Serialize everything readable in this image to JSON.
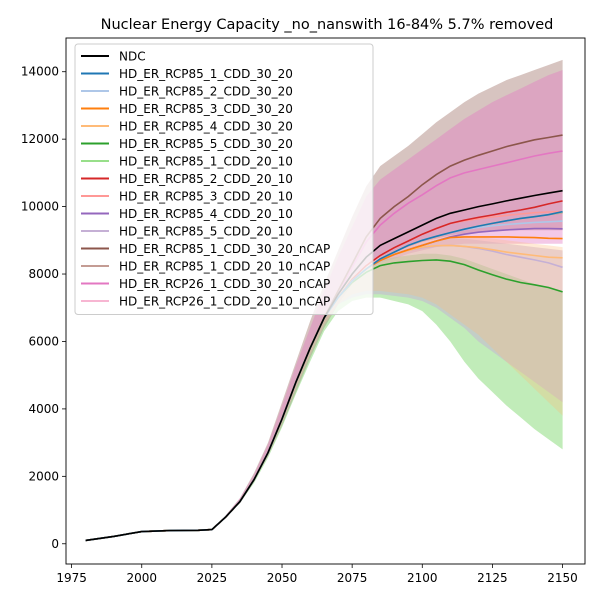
{
  "chart_data": {
    "type": "line",
    "title": "Nuclear Energy Capacity _no_nanswith 16-84% 5.7% removed",
    "xlabel": "",
    "ylabel": "",
    "xlim": [
      1973,
      2158
    ],
    "ylim": [
      -600,
      15000
    ],
    "x_ticks": [
      1975,
      2000,
      2025,
      2050,
      2075,
      2100,
      2125,
      2150
    ],
    "y_ticks": [
      0,
      2000,
      4000,
      6000,
      8000,
      10000,
      12000,
      14000
    ],
    "grid": false,
    "legend_position": "upper-left",
    "x": [
      1980,
      1990,
      2000,
      2010,
      2020,
      2025,
      2030,
      2035,
      2040,
      2045,
      2050,
      2055,
      2060,
      2065,
      2070,
      2075,
      2080,
      2085,
      2090,
      2095,
      2100,
      2105,
      2110,
      2115,
      2120,
      2125,
      2130,
      2135,
      2140,
      2145,
      2150
    ],
    "series": [
      {
        "name": "NDC",
        "color": "#000000",
        "values": [
          100,
          220,
          360,
          390,
          400,
          420,
          800,
          1250,
          1900,
          2700,
          3700,
          4800,
          5800,
          6700,
          7400,
          8000,
          8500,
          8850,
          9050,
          9250,
          9450,
          9650,
          9800,
          9900,
          10000,
          10080,
          10170,
          10250,
          10330,
          10400,
          10470
        ]
      },
      {
        "name": "HD_ER_RCP85_1_CDD_30_20",
        "color": "#1f77b4",
        "values": [
          100,
          220,
          360,
          390,
          400,
          420,
          800,
          1250,
          1900,
          2700,
          3700,
          4800,
          5800,
          6700,
          7300,
          7800,
          8150,
          8450,
          8650,
          8850,
          9000,
          9120,
          9230,
          9330,
          9420,
          9500,
          9580,
          9650,
          9700,
          9760,
          9850
        ]
      },
      {
        "name": "HD_ER_RCP85_2_CDD_30_20",
        "color": "#aec7e8",
        "values": [
          100,
          220,
          360,
          390,
          400,
          420,
          800,
          1250,
          1900,
          2700,
          3700,
          4800,
          5800,
          6700,
          7300,
          7800,
          8150,
          8450,
          8650,
          8850,
          9000,
          9120,
          9230,
          9320,
          9380,
          9430,
          9470,
          9500,
          9530,
          9550,
          9570
        ]
      },
      {
        "name": "HD_ER_RCP85_3_CDD_30_20",
        "color": "#ff7f0e",
        "values": [
          100,
          220,
          360,
          390,
          400,
          420,
          800,
          1250,
          1900,
          2700,
          3700,
          4800,
          5800,
          6700,
          7300,
          7800,
          8150,
          8400,
          8580,
          8720,
          8850,
          8980,
          9080,
          9100,
          9100,
          9100,
          9100,
          9090,
          9080,
          9060,
          9050
        ]
      },
      {
        "name": "HD_ER_RCP85_4_CDD_30_20",
        "color": "#ffbb78",
        "values": [
          100,
          220,
          360,
          390,
          400,
          420,
          800,
          1250,
          1900,
          2700,
          3700,
          4800,
          5800,
          6700,
          7300,
          7800,
          8150,
          8400,
          8580,
          8700,
          8800,
          8840,
          8850,
          8820,
          8780,
          8720,
          8650,
          8600,
          8550,
          8500,
          8480
        ]
      },
      {
        "name": "HD_ER_RCP85_5_CDD_30_20",
        "color": "#2ca02c",
        "values": [
          100,
          220,
          360,
          390,
          400,
          420,
          800,
          1250,
          1900,
          2700,
          3700,
          4800,
          5800,
          6700,
          7300,
          7750,
          8050,
          8250,
          8330,
          8370,
          8400,
          8420,
          8380,
          8280,
          8120,
          7980,
          7850,
          7750,
          7680,
          7600,
          7470
        ]
      },
      {
        "name": "HD_ER_RCP85_1_CDD_20_10",
        "color": "#98df8a",
        "values": [
          100,
          220,
          360,
          390,
          400,
          420,
          800,
          1250,
          1900,
          2700,
          3700,
          4800,
          5800,
          6700,
          7300,
          7800,
          8150,
          8450,
          8650,
          8850,
          9000,
          9120,
          9230,
          9330,
          9420,
          9500,
          9580,
          9650,
          9700,
          9760,
          9840
        ]
      },
      {
        "name": "HD_ER_RCP85_2_CDD_20_10",
        "color": "#d62728",
        "values": [
          100,
          220,
          360,
          390,
          400,
          420,
          800,
          1250,
          1900,
          2700,
          3700,
          4800,
          5800,
          6700,
          7300,
          7850,
          8250,
          8550,
          8780,
          8980,
          9180,
          9350,
          9500,
          9600,
          9680,
          9750,
          9830,
          9900,
          9980,
          10080,
          10170
        ]
      },
      {
        "name": "HD_ER_RCP85_3_CDD_20_10",
        "color": "#ff9896",
        "values": [
          100,
          220,
          360,
          390,
          400,
          420,
          800,
          1250,
          1900,
          2700,
          3700,
          4800,
          5800,
          6700,
          7300,
          7850,
          8250,
          8550,
          8780,
          8980,
          9180,
          9350,
          9500,
          9580,
          9640,
          9690,
          9740,
          9780,
          9820,
          9840,
          9850
        ]
      },
      {
        "name": "HD_ER_RCP85_4_CDD_20_10",
        "color": "#9467bd",
        "values": [
          100,
          220,
          360,
          390,
          400,
          420,
          800,
          1250,
          1900,
          2700,
          3700,
          4800,
          5800,
          6700,
          7300,
          7800,
          8150,
          8400,
          8580,
          8720,
          8850,
          8980,
          9100,
          9180,
          9240,
          9280,
          9310,
          9330,
          9350,
          9350,
          9340
        ]
      },
      {
        "name": "HD_ER_RCP85_5_CDD_20_10",
        "color": "#c5b0d5",
        "values": [
          100,
          220,
          360,
          390,
          400,
          420,
          800,
          1250,
          1900,
          2700,
          3700,
          4800,
          5800,
          6700,
          7300,
          7800,
          8150,
          8400,
          8580,
          8700,
          8780,
          8830,
          8850,
          8820,
          8760,
          8680,
          8580,
          8500,
          8420,
          8330,
          8200
        ]
      },
      {
        "name": "HD_ER_RCP85_1_CDD_30_20_nCAP",
        "color": "#8c564b",
        "values": [
          100,
          220,
          360,
          390,
          400,
          420,
          800,
          1250,
          1900,
          2700,
          3700,
          4800,
          5800,
          6700,
          7500,
          8300,
          9100,
          9650,
          10000,
          10300,
          10650,
          10950,
          11200,
          11380,
          11520,
          11650,
          11780,
          11880,
          11980,
          12050,
          12120
        ]
      },
      {
        "name": "HD_ER_RCP85_1_CDD_20_10_nCAP",
        "color": "#c49c94",
        "values": [
          100,
          220,
          360,
          390,
          400,
          420,
          800,
          1250,
          1900,
          2700,
          3700,
          4800,
          5800,
          6700,
          7300,
          7800,
          8150,
          8450,
          8650,
          8850,
          9000,
          9120,
          9230,
          9330,
          9420,
          9500,
          9580,
          9650,
          9700,
          9760,
          9820
        ]
      },
      {
        "name": "HD_ER_RCP26_1_CDD_30_20_nCAP",
        "color": "#e377c2",
        "values": [
          100,
          220,
          360,
          390,
          400,
          420,
          800,
          1250,
          1900,
          2700,
          3700,
          4800,
          5800,
          6700,
          7400,
          8200,
          8950,
          9450,
          9800,
          10100,
          10350,
          10620,
          10850,
          11000,
          11100,
          11200,
          11300,
          11400,
          11500,
          11580,
          11650
        ]
      },
      {
        "name": "HD_ER_RCP26_1_CDD_20_10_nCAP",
        "color": "#f7b6d2",
        "values": [
          100,
          220,
          360,
          390,
          400,
          420,
          800,
          1250,
          1900,
          2700,
          3700,
          4800,
          5800,
          6700,
          7300,
          7800,
          8150,
          8450,
          8650,
          8850,
          9000,
          9120,
          9230,
          9330,
          9420,
          9500,
          9580,
          9650,
          9700,
          9760,
          9830
        ]
      }
    ],
    "bands": [
      {
        "color": "#8c564b",
        "opacity": 0.35,
        "lower": [
          100,
          220,
          360,
          390,
          400,
          420,
          800,
          1250,
          1850,
          2600,
          3500,
          4500,
          5500,
          6400,
          7100,
          7700,
          8300,
          8500,
          8650,
          8800,
          8950,
          9050,
          9150,
          9200,
          9250,
          9300,
          9300,
          9300,
          9300,
          9300,
          9300
        ],
        "upper": [
          100,
          220,
          360,
          390,
          400,
          420,
          850,
          1350,
          2100,
          3000,
          4200,
          5400,
          6600,
          7700,
          8700,
          9700,
          10600,
          11200,
          11500,
          11800,
          12150,
          12500,
          12800,
          13100,
          13350,
          13550,
          13750,
          13900,
          14050,
          14200,
          14350
        ]
      },
      {
        "color": "#e377c2",
        "opacity": 0.4,
        "lower": [
          100,
          220,
          360,
          390,
          400,
          420,
          800,
          1250,
          1850,
          2600,
          3500,
          4500,
          5500,
          6400,
          7100,
          7700,
          8150,
          8350,
          8450,
          8600,
          8700,
          8800,
          8850,
          8900,
          8900,
          8900,
          8900,
          8900,
          8900,
          8900,
          8900
        ],
        "upper": [
          100,
          220,
          360,
          390,
          400,
          420,
          850,
          1350,
          2050,
          2950,
          4100,
          5300,
          6400,
          7500,
          8500,
          9400,
          10300,
          10800,
          11100,
          11400,
          11700,
          12000,
          12300,
          12600,
          12850,
          13100,
          13300,
          13500,
          13700,
          13900,
          14050
        ]
      },
      {
        "color": "#98df8a",
        "opacity": 0.6,
        "lower": [
          100,
          220,
          360,
          390,
          400,
          420,
          780,
          1200,
          1800,
          2550,
          3450,
          4450,
          5400,
          6300,
          6900,
          7200,
          7300,
          7300,
          7200,
          7100,
          6900,
          6500,
          6000,
          5400,
          4900,
          4500,
          4100,
          3750,
          3400,
          3100,
          2800
        ],
        "upper": [
          100,
          220,
          360,
          390,
          400,
          420,
          800,
          1250,
          1900,
          2700,
          3700,
          4800,
          5800,
          6700,
          7400,
          7900,
          8200,
          8400,
          8500,
          8550,
          8600,
          8600,
          8550,
          8450,
          8300,
          8150,
          8000,
          7850,
          7700,
          7600,
          7500
        ]
      },
      {
        "color": "#c5b0d5",
        "opacity": 0.5,
        "lower": [
          100,
          220,
          360,
          390,
          400,
          420,
          790,
          1230,
          1850,
          2620,
          3580,
          4620,
          5600,
          6500,
          7100,
          7300,
          7400,
          7400,
          7350,
          7300,
          7200,
          7000,
          6700,
          6400,
          6000,
          5700,
          5400,
          5100,
          4800,
          4500,
          4200
        ],
        "upper": [
          100,
          220,
          360,
          390,
          400,
          420,
          810,
          1270,
          1930,
          2750,
          3770,
          4880,
          5900,
          6800,
          7450,
          7950,
          8250,
          8500,
          8650,
          8780,
          8900,
          9000,
          9050,
          9050,
          9000,
          8950,
          8900,
          8850,
          8800,
          8750,
          8700
        ]
      },
      {
        "color": "#ffbb78",
        "opacity": 0.3,
        "lower": [
          100,
          220,
          360,
          390,
          400,
          420,
          790,
          1230,
          1850,
          2620,
          3580,
          4620,
          5600,
          6500,
          7100,
          7400,
          7500,
          7500,
          7450,
          7400,
          7300,
          7100,
          6800,
          6500,
          6200,
          5800,
          5400,
          5000,
          4600,
          4200,
          3800
        ],
        "upper": [
          100,
          220,
          360,
          390,
          400,
          420,
          810,
          1270,
          1930,
          2750,
          3770,
          4880,
          5900,
          6800,
          7450,
          7950,
          8250,
          8500,
          8700,
          8850,
          9000,
          9100,
          9150,
          9150,
          9100,
          9050,
          9000,
          8950,
          8900,
          8850,
          8800
        ]
      }
    ]
  }
}
